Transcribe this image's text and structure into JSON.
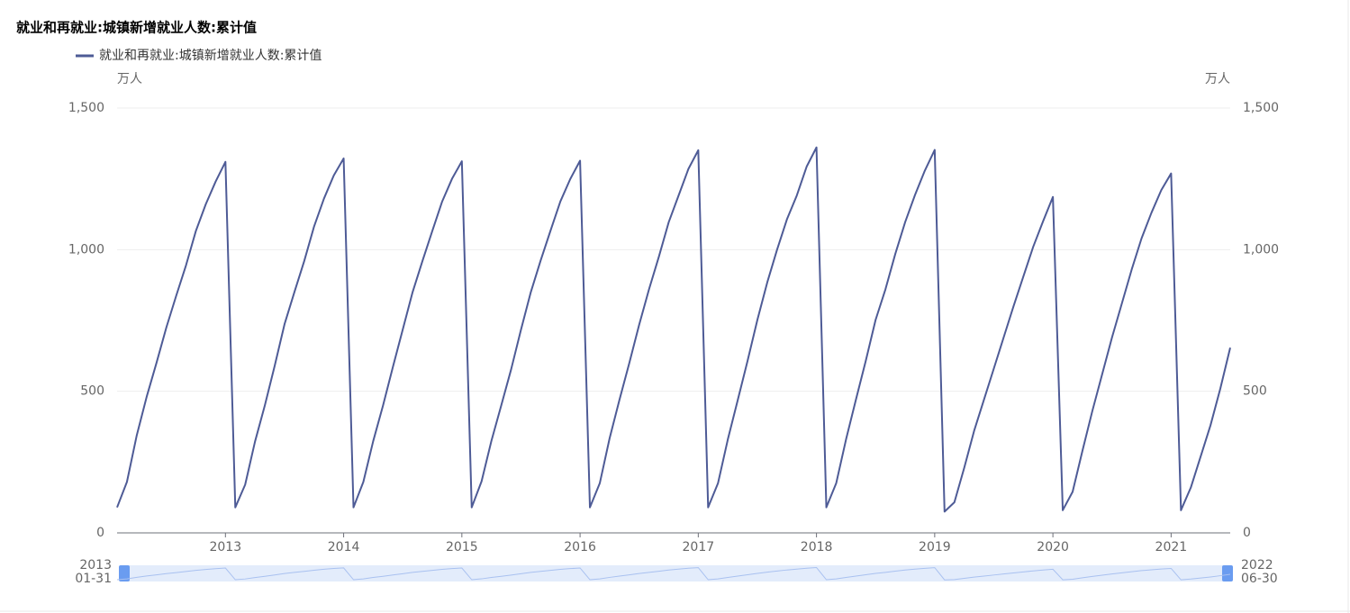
{
  "chart_data": {
    "type": "line",
    "title": "就业和再就业:城镇新增就业人数:累计值",
    "y_unit": "万人",
    "y2_unit": "万人",
    "x": [
      "2013-01",
      "2013-02",
      "2013-03",
      "2013-04",
      "2013-05",
      "2013-06",
      "2013-07",
      "2013-08",
      "2013-09",
      "2013-10",
      "2013-11",
      "2013-12",
      "2014-01",
      "2014-02",
      "2014-03",
      "2014-04",
      "2014-05",
      "2014-06",
      "2014-07",
      "2014-08",
      "2014-09",
      "2014-10",
      "2014-11",
      "2014-12",
      "2015-01",
      "2015-02",
      "2015-03",
      "2015-04",
      "2015-05",
      "2015-06",
      "2015-07",
      "2015-08",
      "2015-09",
      "2015-10",
      "2015-11",
      "2015-12",
      "2016-01",
      "2016-02",
      "2016-03",
      "2016-04",
      "2016-05",
      "2016-06",
      "2016-07",
      "2016-08",
      "2016-09",
      "2016-10",
      "2016-11",
      "2016-12",
      "2017-01",
      "2017-02",
      "2017-03",
      "2017-04",
      "2017-05",
      "2017-06",
      "2017-07",
      "2017-08",
      "2017-09",
      "2017-10",
      "2017-11",
      "2017-12",
      "2018-01",
      "2018-02",
      "2018-03",
      "2018-04",
      "2018-05",
      "2018-06",
      "2018-07",
      "2018-08",
      "2018-09",
      "2018-10",
      "2018-11",
      "2018-12",
      "2019-01",
      "2019-02",
      "2019-03",
      "2019-04",
      "2019-05",
      "2019-06",
      "2019-07",
      "2019-08",
      "2019-09",
      "2019-10",
      "2019-11",
      "2019-12",
      "2020-01",
      "2020-02",
      "2020-03",
      "2020-04",
      "2020-05",
      "2020-06",
      "2020-07",
      "2020-08",
      "2020-09",
      "2020-10",
      "2020-11",
      "2020-12",
      "2021-01",
      "2021-02",
      "2021-03",
      "2021-04",
      "2021-05",
      "2021-06",
      "2021-07",
      "2021-08",
      "2021-09",
      "2021-10",
      "2021-11",
      "2021-12",
      "2022-01",
      "2022-02",
      "2022-03",
      "2022-04",
      "2022-05",
      "2022-06"
    ],
    "series": [
      {
        "name": "就业和再就业:城镇新增就业人数:累计值",
        "color": "#4e5b96",
        "values": [
          90,
          180,
          345,
          480,
          600,
          725,
          837,
          945,
          1066,
          1160,
          1240,
          1310,
          90,
          170,
          322,
          450,
          590,
          737,
          850,
          960,
          1082,
          1180,
          1262,
          1322,
          90,
          180,
          324,
          450,
          586,
          718,
          850,
          960,
          1066,
          1170,
          1250,
          1312,
          90,
          182,
          325,
          450,
          577,
          717,
          850,
          962,
          1067,
          1170,
          1249,
          1314,
          90,
          175,
          334,
          470,
          600,
          735,
          860,
          975,
          1097,
          1191,
          1285,
          1351,
          90,
          175,
          330,
          468,
          607,
          752,
          884,
          1000,
          1107,
          1191,
          1293,
          1361,
          90,
          175,
          330,
          470,
          607,
          752,
          860,
          985,
          1097,
          1193,
          1279,
          1352,
          75,
          108,
          230,
          360,
          470,
          580,
          690,
          800,
          905,
          1010,
          1100,
          1186,
          80,
          145,
          290,
          430,
          560,
          690,
          810,
          930,
          1040,
          1130,
          1210,
          1269,
          80,
          160,
          270,
          380,
          510,
          654
        ]
      }
    ],
    "xticks": [
      {
        "value": "2013-12",
        "label": "2013"
      },
      {
        "value": "2014-12",
        "label": "2014"
      },
      {
        "value": "2015-12",
        "label": "2015"
      },
      {
        "value": "2016-12",
        "label": "2016"
      },
      {
        "value": "2017-12",
        "label": "2017"
      },
      {
        "value": "2018-12",
        "label": "2018"
      },
      {
        "value": "2019-12",
        "label": "2019"
      },
      {
        "value": "2020-12",
        "label": "2020"
      },
      {
        "value": "2021-12",
        "label": "2021"
      }
    ],
    "ylim": [
      0,
      1500
    ],
    "yticks": [
      0,
      500,
      {
        "value": 1000,
        "label": "1,000"
      },
      {
        "value": 1500,
        "label": "1,500"
      }
    ],
    "y2lim": [
      0,
      1500
    ],
    "y2ticks": [
      0,
      500,
      {
        "value": 1000,
        "label": "1,000"
      },
      {
        "value": 1500,
        "label": "1,500"
      }
    ],
    "grid": true,
    "data_zoom": {
      "start": [
        "2013",
        "01-31"
      ],
      "end": [
        "2022",
        "06-30"
      ]
    }
  }
}
